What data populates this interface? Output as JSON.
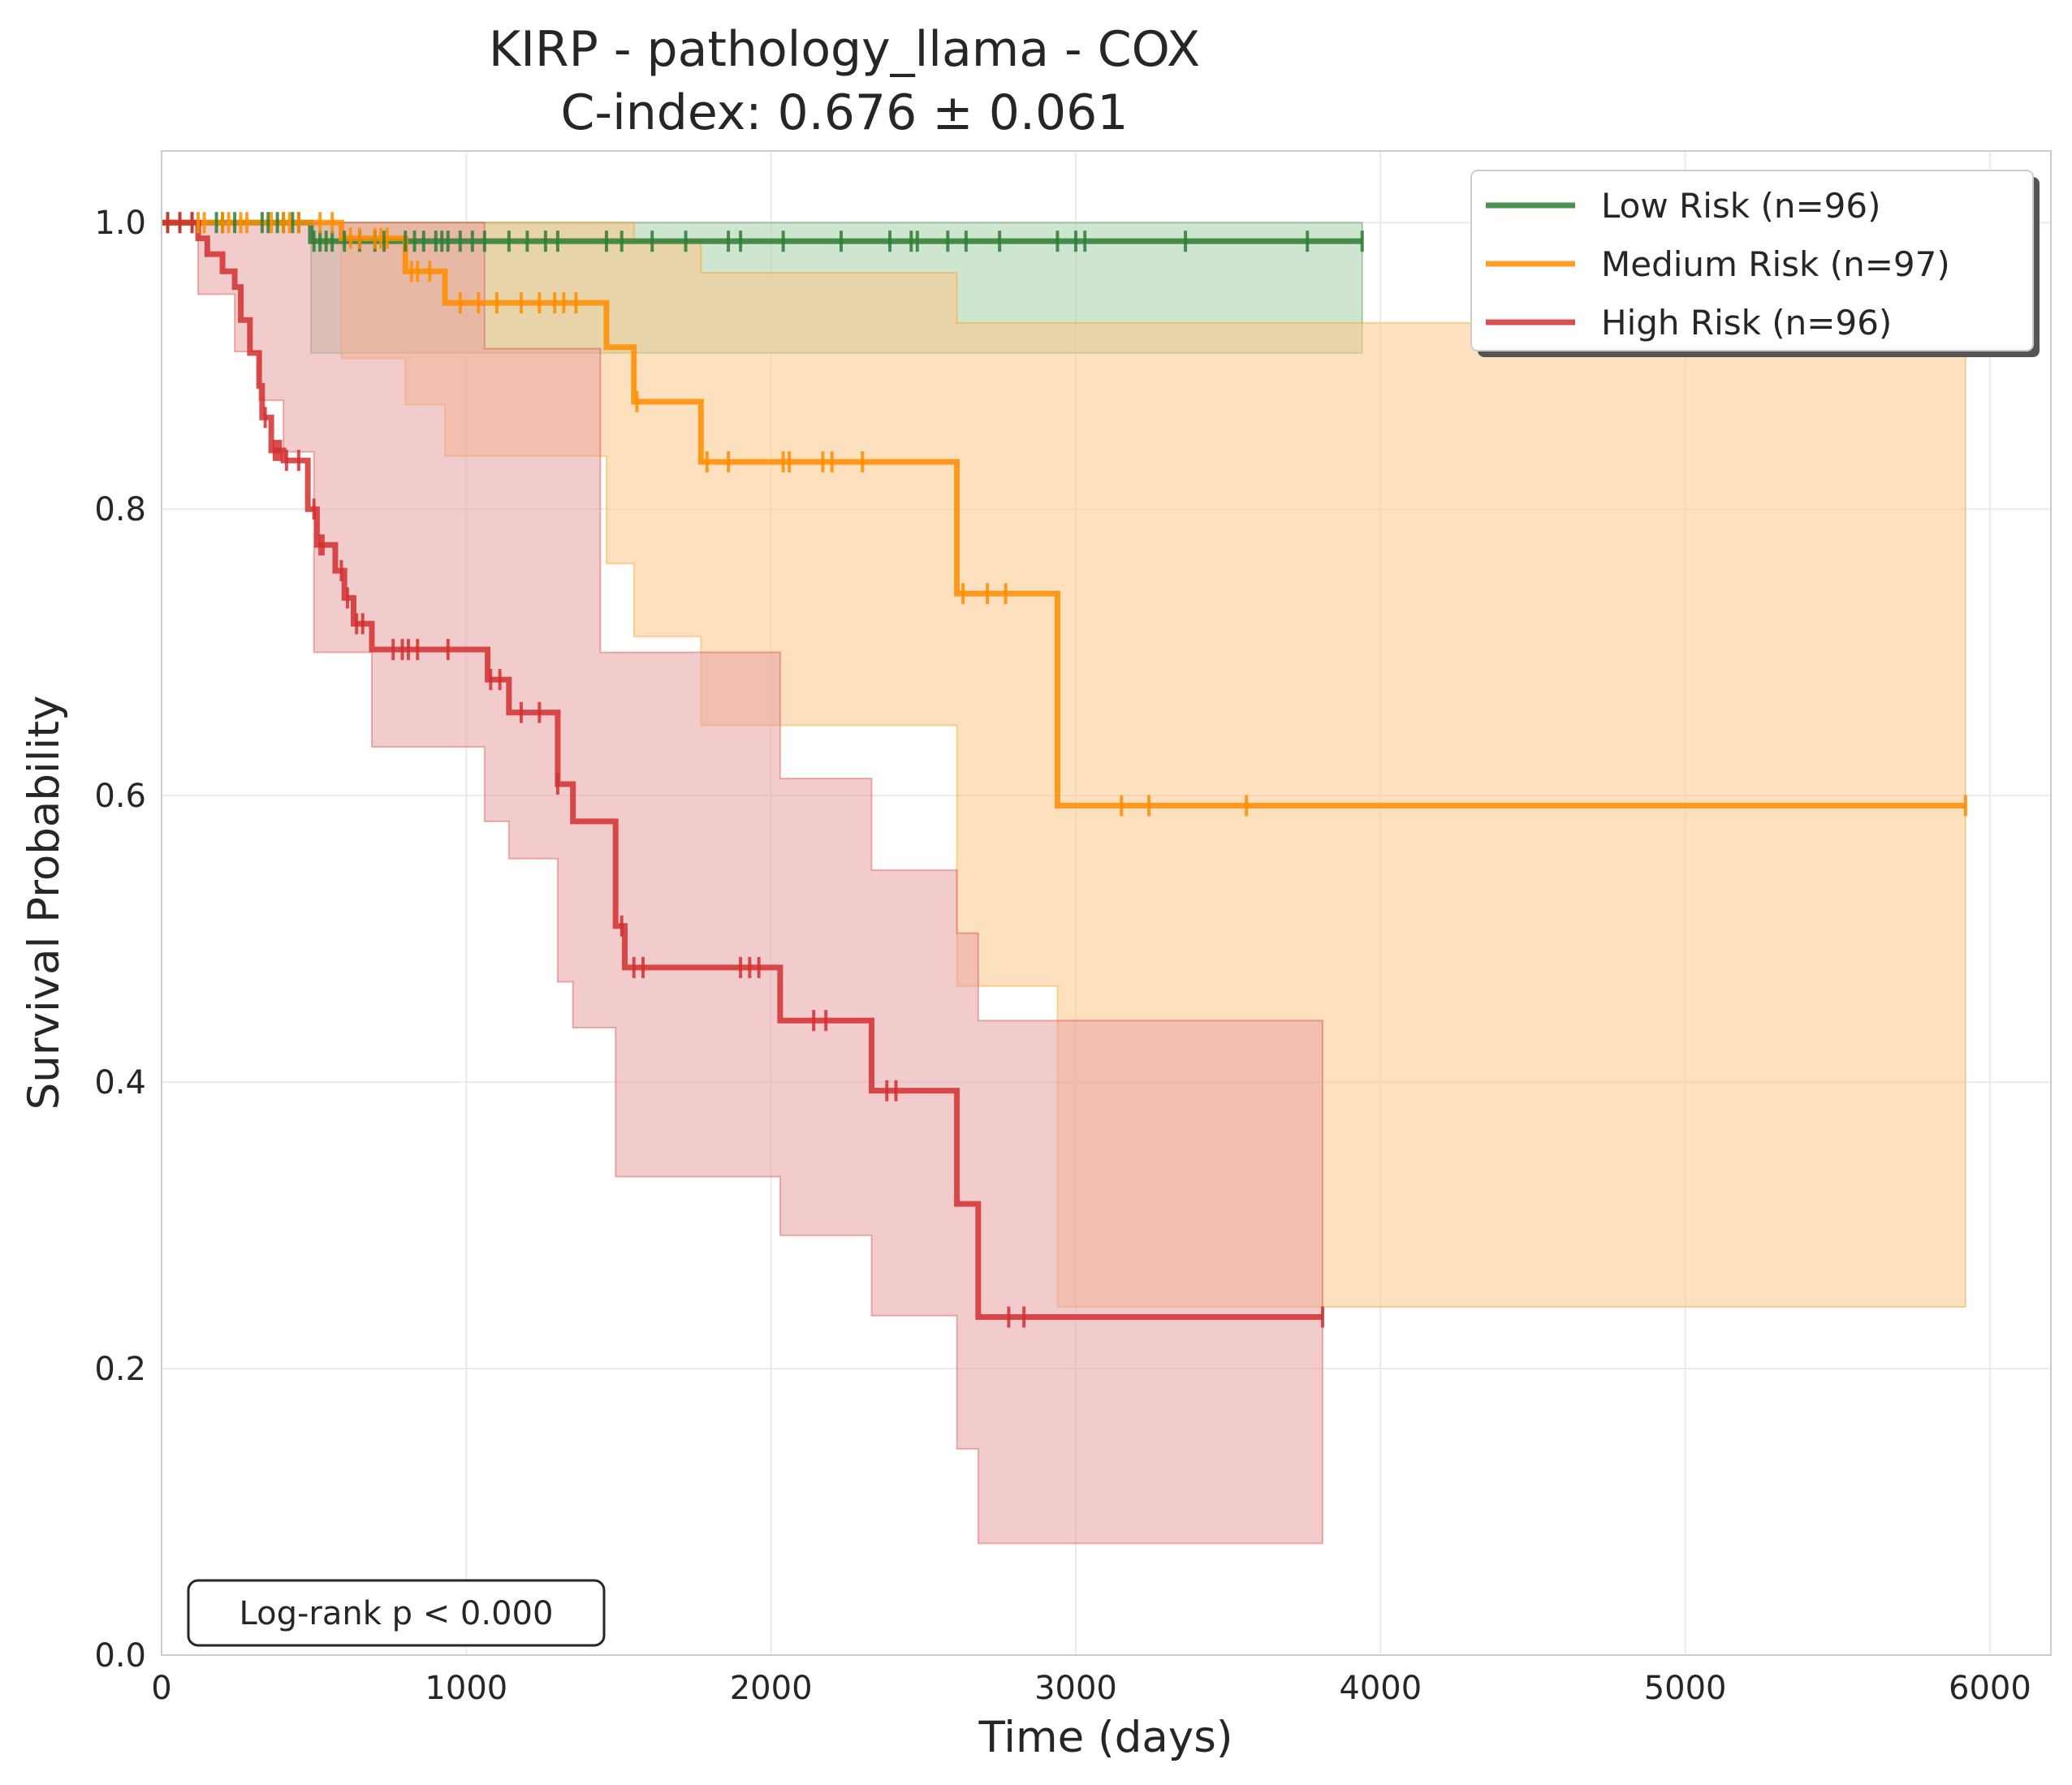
{
  "chart_data": {
    "type": "line",
    "subtype": "kaplan-meier",
    "title": "KIRP - pathology_llama - COX",
    "subtitle": "C-index: 0.676 ± 0.061",
    "xlabel": "Time (days)",
    "ylabel": "Survival Probability",
    "xlim": [
      0,
      6200
    ],
    "ylim": [
      0,
      1.05
    ],
    "xticks": [
      0,
      1000,
      2000,
      3000,
      4000,
      5000,
      6000
    ],
    "xtick_labels": [
      "0",
      "1000",
      "2000",
      "3000",
      "4000",
      "5000",
      "6000"
    ],
    "yticks": [
      0.0,
      0.2,
      0.4,
      0.6,
      0.8,
      1.0
    ],
    "ytick_labels": [
      "0.0",
      "0.2",
      "0.4",
      "0.6",
      "0.8",
      "1.0"
    ],
    "grid": true,
    "legend_position": "top-right",
    "annotation": "Log-rank p < 0.000",
    "series": [
      {
        "name": "Low Risk (n=96)",
        "color": "#2e7d32",
        "fill_color": "#a5cfa8",
        "step": [
          [
            0,
            1.0
          ],
          [
            490,
            1.0
          ],
          [
            490,
            0.987
          ],
          [
            3940,
            0.987
          ]
        ],
        "ci_upper": [
          [
            490,
            1.0
          ],
          [
            3940,
            1.0
          ]
        ],
        "ci_lower": [
          [
            490,
            0.909
          ],
          [
            3940,
            0.909
          ]
        ],
        "censor_times": [
          20,
          60,
          100,
          180,
          200,
          240,
          330,
          350,
          380,
          400,
          430,
          450,
          500,
          520,
          540,
          560,
          600,
          650,
          700,
          730,
          800,
          830,
          860,
          900,
          920,
          940,
          980,
          1020,
          1060,
          1140,
          1200,
          1260,
          1300,
          1460,
          1510,
          1610,
          1720,
          1860,
          1900,
          2040,
          2230,
          2390,
          2460,
          2480,
          2580,
          2640,
          2750,
          2940,
          3000,
          3030,
          3360,
          3760,
          3940
        ]
      },
      {
        "name": "Medium Risk (n=97)",
        "color": "#ff8c00",
        "fill_color": "#fbc98a",
        "step": [
          [
            0,
            1.0
          ],
          [
            590,
            1.0
          ],
          [
            590,
            0.989
          ],
          [
            800,
            0.989
          ],
          [
            800,
            0.966
          ],
          [
            930,
            0.966
          ],
          [
            930,
            0.944
          ],
          [
            1460,
            0.944
          ],
          [
            1460,
            0.913
          ],
          [
            1550,
            0.913
          ],
          [
            1550,
            0.875
          ],
          [
            1770,
            0.875
          ],
          [
            1770,
            0.833
          ],
          [
            2610,
            0.833
          ],
          [
            2610,
            0.741
          ],
          [
            2940,
            0.741
          ],
          [
            2940,
            0.593
          ],
          [
            5920,
            0.593
          ]
        ],
        "ci_upper": [
          [
            590,
            1.0
          ],
          [
            1550,
            1.0
          ],
          [
            1550,
            0.987
          ],
          [
            1770,
            0.987
          ],
          [
            1770,
            0.965
          ],
          [
            2610,
            0.965
          ],
          [
            2610,
            0.93
          ],
          [
            2940,
            0.93
          ],
          [
            2940,
            0.93
          ],
          [
            5920,
            0.93
          ]
        ],
        "ci_lower": [
          [
            590,
            0.905
          ],
          [
            800,
            0.905
          ],
          [
            800,
            0.873
          ],
          [
            930,
            0.873
          ],
          [
            930,
            0.837
          ],
          [
            1460,
            0.837
          ],
          [
            1460,
            0.762
          ],
          [
            1550,
            0.762
          ],
          [
            1550,
            0.711
          ],
          [
            1770,
            0.711
          ],
          [
            1770,
            0.649
          ],
          [
            2610,
            0.649
          ],
          [
            2610,
            0.467
          ],
          [
            2940,
            0.467
          ],
          [
            2940,
            0.243
          ],
          [
            5920,
            0.243
          ]
        ],
        "censor_times": [
          120,
          140,
          200,
          220,
          260,
          280,
          360,
          400,
          420,
          450,
          520,
          560,
          620,
          650,
          700,
          720,
          740,
          820,
          840,
          880,
          980,
          1040,
          1100,
          1180,
          1240,
          1290,
          1320,
          1360,
          1560,
          1790,
          1860,
          2040,
          2060,
          2170,
          2200,
          2300,
          2630,
          2710,
          2770,
          3150,
          3240,
          3560,
          5920
        ]
      },
      {
        "name": "High Risk (n=96)",
        "color": "#d32f2f",
        "fill_color": "#e8a3a3",
        "step": [
          [
            0,
            1.0
          ],
          [
            120,
            1.0
          ],
          [
            120,
            0.989
          ],
          [
            150,
            0.989
          ],
          [
            150,
            0.978
          ],
          [
            200,
            0.978
          ],
          [
            200,
            0.966
          ],
          [
            240,
            0.966
          ],
          [
            240,
            0.955
          ],
          [
            260,
            0.955
          ],
          [
            260,
            0.932
          ],
          [
            290,
            0.932
          ],
          [
            290,
            0.909
          ],
          [
            320,
            0.909
          ],
          [
            320,
            0.886
          ],
          [
            330,
            0.886
          ],
          [
            330,
            0.864
          ],
          [
            360,
            0.864
          ],
          [
            360,
            0.841
          ],
          [
            400,
            0.841
          ],
          [
            400,
            0.834
          ],
          [
            480,
            0.834
          ],
          [
            480,
            0.8
          ],
          [
            510,
            0.8
          ],
          [
            510,
            0.775
          ],
          [
            570,
            0.775
          ],
          [
            570,
            0.757
          ],
          [
            600,
            0.757
          ],
          [
            600,
            0.738
          ],
          [
            630,
            0.738
          ],
          [
            630,
            0.72
          ],
          [
            690,
            0.72
          ],
          [
            690,
            0.702
          ],
          [
            1070,
            0.702
          ],
          [
            1070,
            0.681
          ],
          [
            1140,
            0.681
          ],
          [
            1140,
            0.658
          ],
          [
            1300,
            0.658
          ],
          [
            1300,
            0.608
          ],
          [
            1350,
            0.608
          ],
          [
            1350,
            0.582
          ],
          [
            1490,
            0.582
          ],
          [
            1490,
            0.509
          ],
          [
            1520,
            0.509
          ],
          [
            1520,
            0.48
          ],
          [
            2030,
            0.48
          ],
          [
            2030,
            0.443
          ],
          [
            2330,
            0.443
          ],
          [
            2330,
            0.394
          ],
          [
            2610,
            0.394
          ],
          [
            2610,
            0.315
          ],
          [
            2680,
            0.315
          ],
          [
            2680,
            0.236
          ],
          [
            3810,
            0.236
          ]
        ],
        "ci_upper": [
          [
            120,
            1.0
          ],
          [
            1060,
            1.0
          ],
          [
            1060,
            0.912
          ],
          [
            1440,
            0.912
          ],
          [
            1440,
            0.7
          ],
          [
            2030,
            0.7
          ],
          [
            2030,
            0.612
          ],
          [
            2330,
            0.612
          ],
          [
            2330,
            0.548
          ],
          [
            2610,
            0.548
          ],
          [
            2610,
            0.504
          ],
          [
            2680,
            0.504
          ],
          [
            2680,
            0.443
          ],
          [
            3810,
            0.443
          ]
        ],
        "ci_lower": [
          [
            120,
            0.95
          ],
          [
            240,
            0.95
          ],
          [
            240,
            0.91
          ],
          [
            320,
            0.91
          ],
          [
            320,
            0.876
          ],
          [
            400,
            0.876
          ],
          [
            400,
            0.84
          ],
          [
            500,
            0.84
          ],
          [
            500,
            0.7
          ],
          [
            690,
            0.7
          ],
          [
            690,
            0.634
          ],
          [
            1060,
            0.634
          ],
          [
            1060,
            0.582
          ],
          [
            1140,
            0.582
          ],
          [
            1140,
            0.556
          ],
          [
            1300,
            0.556
          ],
          [
            1300,
            0.47
          ],
          [
            1350,
            0.47
          ],
          [
            1350,
            0.438
          ],
          [
            1490,
            0.438
          ],
          [
            1490,
            0.334
          ],
          [
            2030,
            0.334
          ],
          [
            2030,
            0.293
          ],
          [
            2330,
            0.293
          ],
          [
            2330,
            0.237
          ],
          [
            2610,
            0.237
          ],
          [
            2610,
            0.144
          ],
          [
            2680,
            0.144
          ],
          [
            2680,
            0.078
          ],
          [
            3810,
            0.078
          ]
        ],
        "censor_times": [
          20,
          60,
          100,
          340,
          370,
          380,
          390,
          410,
          450,
          500,
          520,
          530,
          590,
          610,
          640,
          660,
          760,
          790,
          810,
          840,
          940,
          1080,
          1110,
          1180,
          1240,
          1300,
          1510,
          1550,
          1580,
          1900,
          1930,
          1960,
          2140,
          2180,
          2380,
          2410,
          2780,
          2830,
          3810
        ]
      }
    ]
  }
}
